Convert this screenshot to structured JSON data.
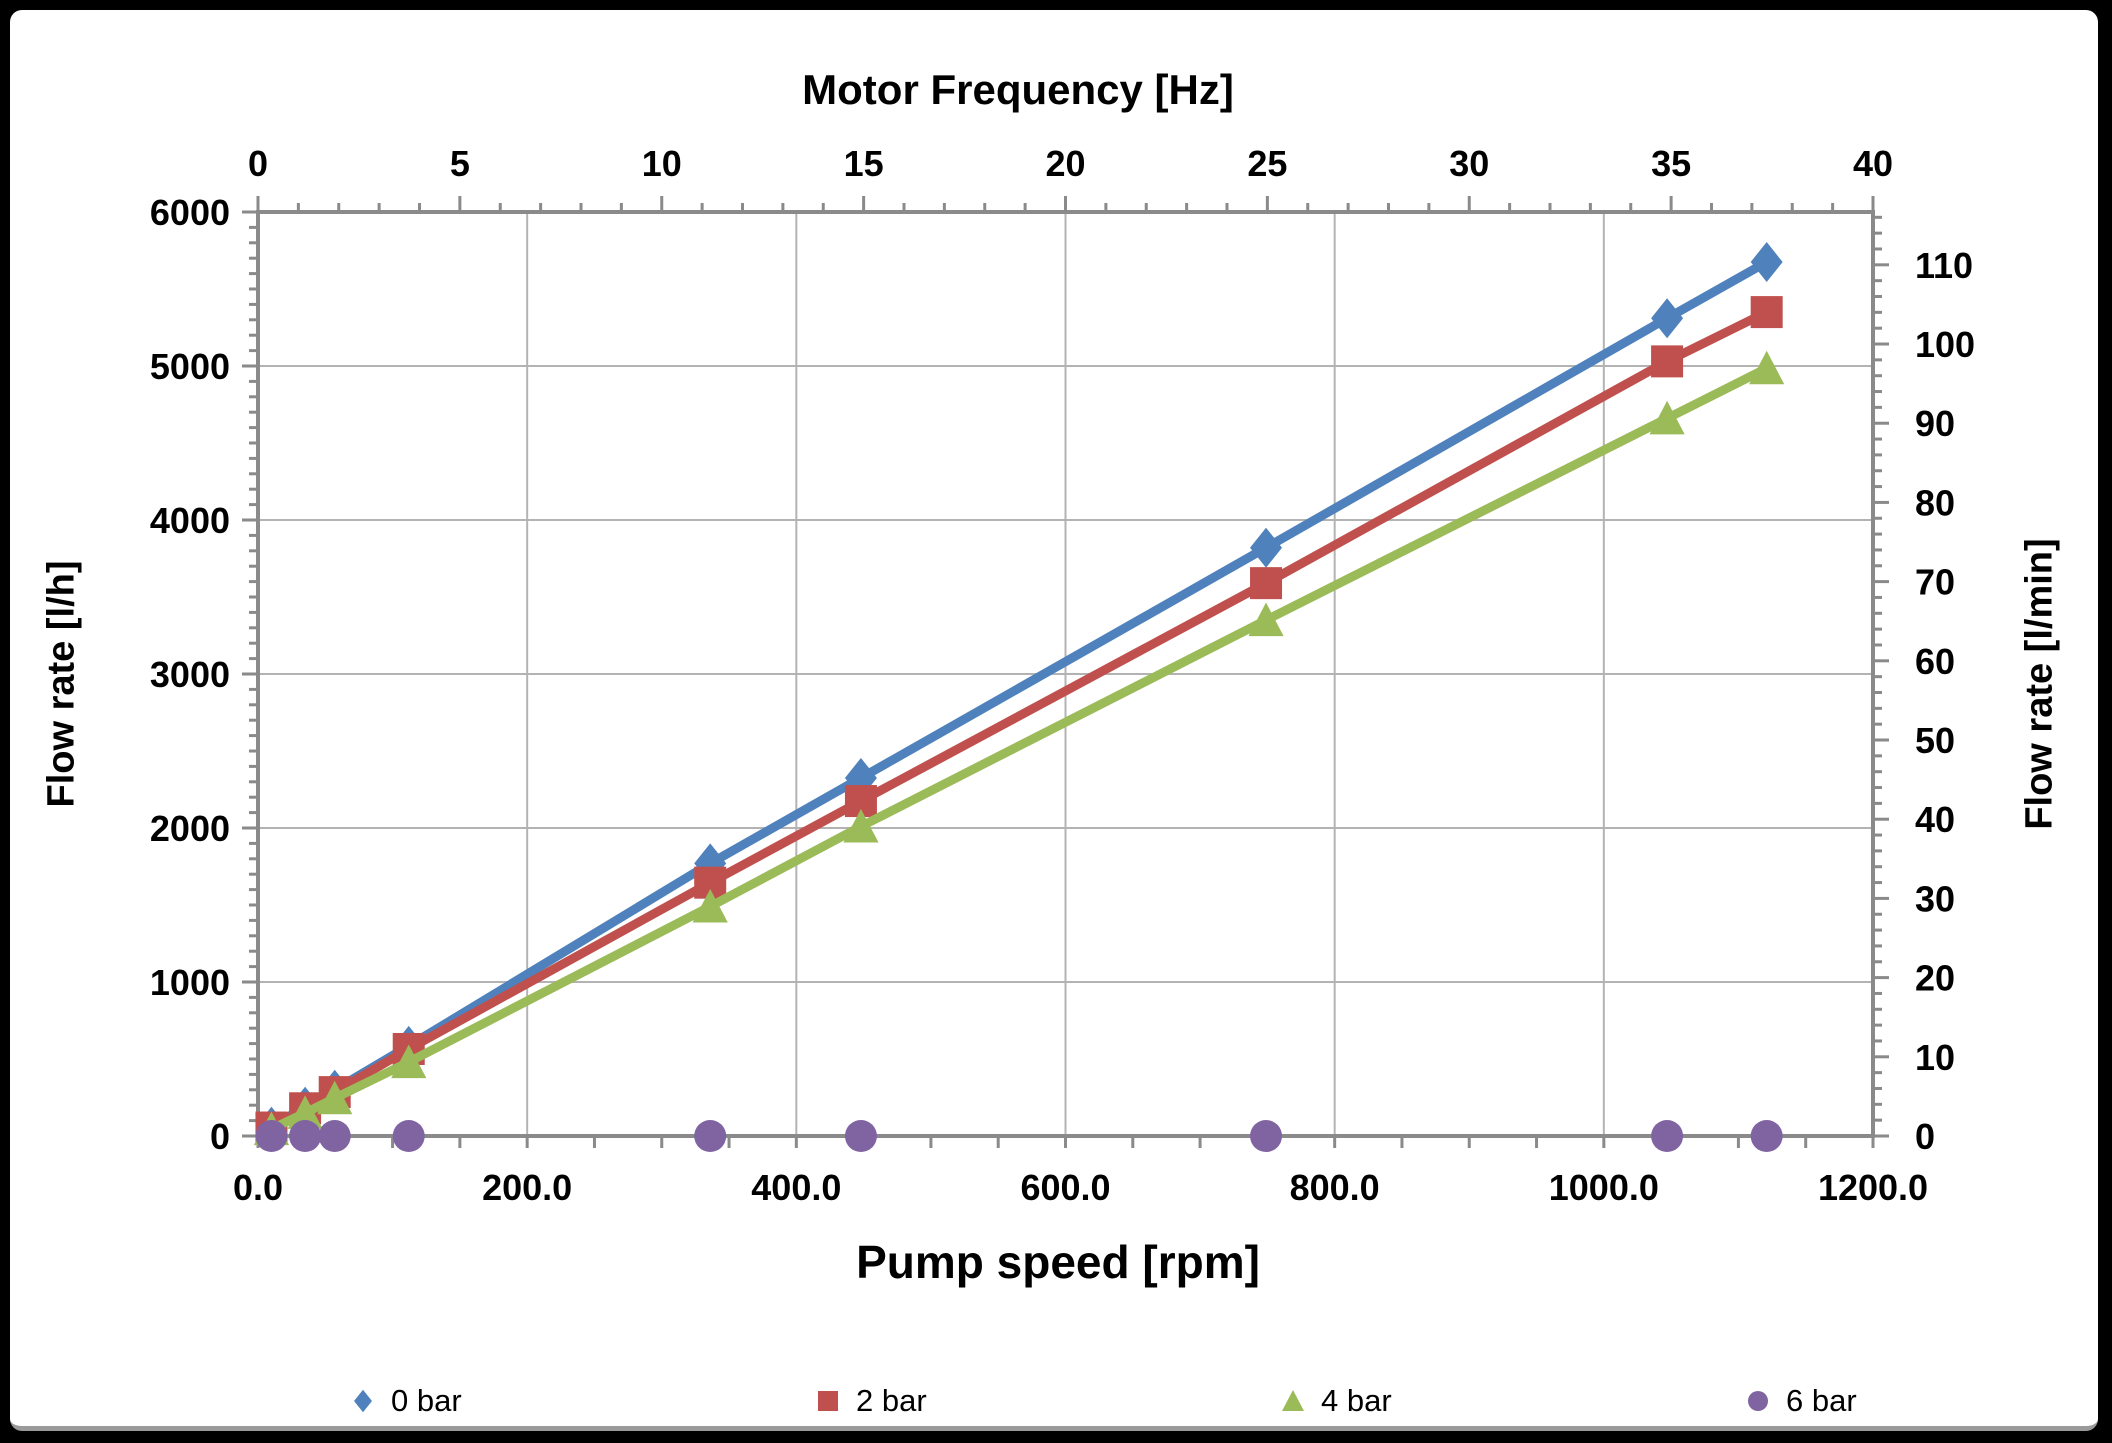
{
  "frame": {
    "background": "#000000",
    "chart_background": "#FFFFFF",
    "grid_color": "#B3B3B3",
    "axis_color": "#8A8A8A",
    "text_color": "#000000"
  },
  "chart_data": {
    "type": "line",
    "axes": {
      "top": {
        "title": "Motor Frequency [Hz]",
        "min": 0,
        "max": 40,
        "major": 5,
        "minor": 1,
        "tick_labels": [
          "0",
          "5",
          "10",
          "15",
          "20",
          "25",
          "30",
          "35",
          "40"
        ]
      },
      "bottom": {
        "title": "Pump speed [rpm]",
        "min": 0,
        "max": 1200,
        "tick_step": 50,
        "label_step": 200,
        "grid_step": 200,
        "tick_labels": [
          "0.0",
          "200.0",
          "400.0",
          "600.0",
          "800.0",
          "1000.0",
          "1200.0"
        ]
      },
      "left": {
        "title": "Flow rate [l/h]",
        "min": 0,
        "max": 6000,
        "major": 1000,
        "minor": 100,
        "grid": true,
        "tick_labels": [
          "0",
          "1000",
          "2000",
          "3000",
          "4000",
          "5000",
          "6000"
        ]
      },
      "right": {
        "title": "Flow rate [l/min]",
        "min": 0,
        "max": 116.67,
        "major": 10,
        "minor": 2,
        "tick_labels": [
          "0",
          "10",
          "20",
          "30",
          "40",
          "50",
          "60",
          "70",
          "80",
          "90",
          "100",
          "110"
        ]
      }
    },
    "x_rpm": [
      10,
      35,
      57,
      112,
      336,
      448,
      749,
      1047,
      1121
    ],
    "series": [
      {
        "name": "0 bar",
        "color": "#4F81BD",
        "marker": "diamond",
        "line": true,
        "values": [
          60,
          190,
          300,
          585,
          1770,
          2325,
          3820,
          5310,
          5675
        ]
      },
      {
        "name": "2 bar",
        "color": "#C0504D",
        "marker": "square",
        "line": true,
        "values": [
          55,
          180,
          285,
          565,
          1645,
          2175,
          3590,
          5030,
          5350
        ]
      },
      {
        "name": "4 bar",
        "color": "#9BBB59",
        "marker": "triangle",
        "line": true,
        "values": [
          45,
          150,
          245,
          480,
          1490,
          2010,
          3350,
          4660,
          4985
        ]
      },
      {
        "name": "6 bar",
        "color": "#8064A2",
        "marker": "circle",
        "line": false,
        "values": [
          0,
          0,
          0,
          0,
          0,
          0,
          0,
          0,
          0
        ]
      }
    ],
    "legend": {
      "position": "bottom",
      "items": [
        "0 bar",
        "2 bar",
        "4 bar",
        "6 bar"
      ]
    }
  }
}
